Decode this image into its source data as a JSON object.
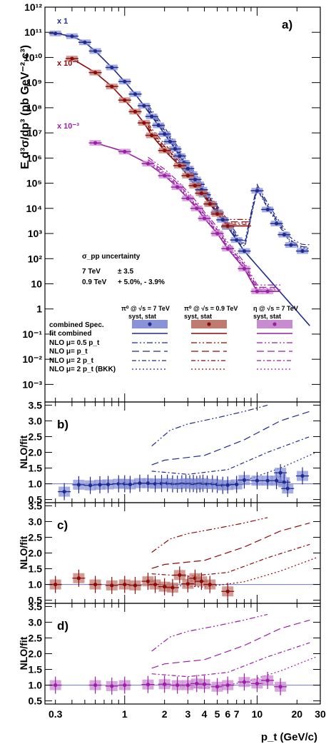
{
  "colors": {
    "pi0_7tev": "#1f2a8c",
    "pi0_09tev": "#8b0a0a",
    "eta_7tev": "#9b1fa6",
    "pi0_7tev_box": "#8a93d8",
    "pi0_09tev_box": "#c07b70",
    "eta_7tev_box": "#c98bd0"
  },
  "figure": {
    "panel_a_label": "a)",
    "panel_b_label": "b)",
    "panel_c_label": "c)",
    "panel_d_label": "d)",
    "y_title_main": "E d³σ/dp³ (pb GeV⁻² c³)",
    "y_title_ratio": "NLO/fit",
    "x_title": "p_t (GeV/c)",
    "scale_labels": [
      "x 1",
      "x 10⁻¹",
      "x 10⁻³"
    ]
  },
  "uncertainty_box": {
    "title": "σ_pp uncertainty",
    "line1_label": "7 TeV",
    "line1_value": "± 3.5",
    "line2_label": "0.9 TeV",
    "line2_value": "+ 5.0%, - 3.9%"
  },
  "legend": {
    "headers": [
      "π⁰ @ √s = 7 TeV",
      "π⁰ @ √s = 0.9 TeV",
      "η @ √s = 7 TeV"
    ],
    "subheaders": [
      "syst, stat",
      "syst, stat",
      "syst, stat"
    ],
    "rows": [
      "combined Spec.",
      "fit combined",
      "NLO μ= 0.5 p_t",
      "NLO μ= p_t",
      "NLO μ= 2 p_t",
      "NLO μ= 2 p_t (BKK)"
    ]
  },
  "chart_data": [
    {
      "panel": "a)",
      "type": "scatter",
      "x_log": true,
      "y_log": true,
      "xlim": [
        0.25,
        30
      ],
      "ylim": [
        0.0002,
        1000000000000
      ],
      "ylabel": "E d³σ/dp³ (pb GeV⁻² c³)",
      "x_ticks": [
        0.3,
        1,
        2,
        3,
        4,
        5,
        6,
        7,
        10,
        20,
        30
      ],
      "y_ticks": [
        "10⁻³",
        "10⁻²",
        "10⁻¹",
        "1",
        "10",
        "10²",
        "10³",
        "10⁴",
        "10⁵",
        "10⁶",
        "10⁷",
        "10⁸",
        "10⁹",
        "10¹⁰",
        "10¹¹",
        "10¹²"
      ],
      "series": [
        {
          "name": "π⁰ @ √s = 7 TeV",
          "scale": "x 1",
          "x": [
            0.3,
            0.4,
            0.5,
            0.6,
            0.8,
            1.0,
            1.2,
            1.4,
            1.6,
            1.8,
            2.0,
            2.2,
            2.4,
            2.6,
            2.8,
            3.0,
            3.2,
            3.4,
            3.6,
            3.8,
            4.0,
            4.5,
            5.0,
            5.5,
            6.0,
            7.0,
            8.0,
            10.0,
            12.0,
            14.0,
            16.0,
            18.0,
            22.0
          ],
          "y": [
            90000000000.0,
            70000000000.0,
            40000000000.0,
            18000000000.0,
            4000000000.0,
            1100000000.0,
            350000000.0,
            120000000.0,
            45000000.0,
            20000000.0,
            9000000.0,
            4500000.0,
            2300000.0,
            1200000.0,
            650000.0,
            380000.0,
            230000.0,
            140000.0,
            90000.0,
            55000.0,
            35000.0,
            15000.0,
            7000.0,
            3500.0,
            1800.0,
            550,
            200,
            50000.0,
            9000.0,
            2500.0,
            900,
            350,
            200
          ]
        },
        {
          "name": "π⁰ @ √s = 0.9 TeV",
          "scale": "x 10⁻¹",
          "x": [
            0.4,
            0.6,
            0.8,
            1.0,
            1.2,
            1.4,
            1.6,
            2.0,
            2.6,
            3.0,
            3.4,
            3.8,
            4.4,
            5.0,
            6.0
          ],
          "y": [
            9000000000.0,
            2500000000.0,
            700000000.0,
            200000000.0,
            70000000.0,
            25000000.0,
            8000000.0,
            2000000.0,
            500000.0,
            200000.0,
            80000.0,
            40000.0,
            15000.0,
            6000.0,
            2000.0
          ]
        },
        {
          "name": "η @ √s = 7 TeV",
          "scale": "x 10⁻³",
          "x": [
            0.6,
            1.0,
            1.5,
            2.0,
            2.5,
            3.0,
            3.5,
            4.0,
            5.0,
            6.0,
            8.0,
            10.0,
            12.0
          ],
          "y": [
            4000000.0,
            1800000.0,
            600000.0,
            200000.0,
            70000.0,
            25000.0,
            10000.0,
            4000.0,
            1000.0,
            250,
            40,
            5,
            5
          ]
        }
      ]
    },
    {
      "panel": "b)",
      "type": "scatter",
      "x_log": true,
      "ylabel": "NLO/fit",
      "ylim": [
        0.4,
        3.6
      ],
      "y_ticks": [
        0.5,
        1.0,
        1.5,
        2.0,
        2.5,
        3.0,
        3.5
      ],
      "series": [
        {
          "name": "π⁰ @ √s = 7 TeV",
          "x": [
            0.35,
            0.45,
            0.55,
            0.65,
            0.75,
            0.9,
            1.0,
            1.1,
            1.3,
            1.5,
            1.7,
            1.9,
            2.1,
            2.3,
            2.5,
            2.7,
            2.9,
            3.1,
            3.3,
            3.5,
            3.7,
            3.9,
            4.2,
            4.6,
            5.0,
            5.5,
            6.0,
            7.0,
            8.0,
            10.0,
            12.0,
            14.0,
            15.0,
            16.0,
            17.0,
            22.0
          ],
          "y": [
            0.75,
            0.97,
            0.95,
            0.97,
            0.98,
            1.0,
            1.0,
            0.98,
            1.02,
            1.02,
            1.0,
            1.01,
            1.02,
            1.0,
            0.99,
            1.0,
            1.02,
            1.0,
            1.01,
            0.98,
            1.0,
            1.02,
            0.99,
            1.0,
            0.98,
            0.95,
            0.96,
            0.98,
            1.12,
            1.1,
            1.1,
            1.1,
            1.35,
            1.05,
            0.85,
            1.25
          ]
        }
      ]
    },
    {
      "panel": "c)",
      "type": "scatter",
      "x_log": true,
      "ylabel": "NLO/fit",
      "ylim": [
        0.4,
        3.6
      ],
      "y_ticks": [
        0.5,
        1.0,
        1.5,
        2.0,
        2.5,
        3.0,
        3.5
      ],
      "series": [
        {
          "name": "π⁰ @ √s = 0.9 TeV",
          "x": [
            0.3,
            0.45,
            0.6,
            0.8,
            1.0,
            1.2,
            1.5,
            1.7,
            2.0,
            2.3,
            2.6,
            3.0,
            3.4,
            3.8,
            4.4,
            6.0
          ],
          "y": [
            1.0,
            1.2,
            1.0,
            0.97,
            1.0,
            0.97,
            1.1,
            1.0,
            0.93,
            0.9,
            1.3,
            1.02,
            1.2,
            1.1,
            1.0,
            0.78
          ]
        }
      ]
    },
    {
      "panel": "d)",
      "type": "scatter",
      "x_log": true,
      "ylabel": "NLO/fit",
      "ylim": [
        0.4,
        3.6
      ],
      "y_ticks": [
        0.5,
        1.0,
        1.5,
        2.0,
        2.5,
        3.0,
        3.5
      ],
      "xlabel": "p_t (GeV/c)",
      "series": [
        {
          "name": "η @ √s = 7 TeV",
          "x": [
            0.3,
            0.6,
            0.8,
            1.0,
            1.5,
            2.0,
            2.5,
            3.0,
            3.5,
            4.0,
            5.0,
            6.0,
            8.0,
            10.0,
            12.0,
            15.0
          ],
          "y": [
            1.0,
            1.0,
            0.97,
            1.0,
            1.02,
            1.03,
            1.0,
            1.0,
            1.05,
            1.03,
            0.95,
            1.0,
            1.1,
            1.05,
            1.15,
            0.95
          ]
        }
      ]
    }
  ]
}
